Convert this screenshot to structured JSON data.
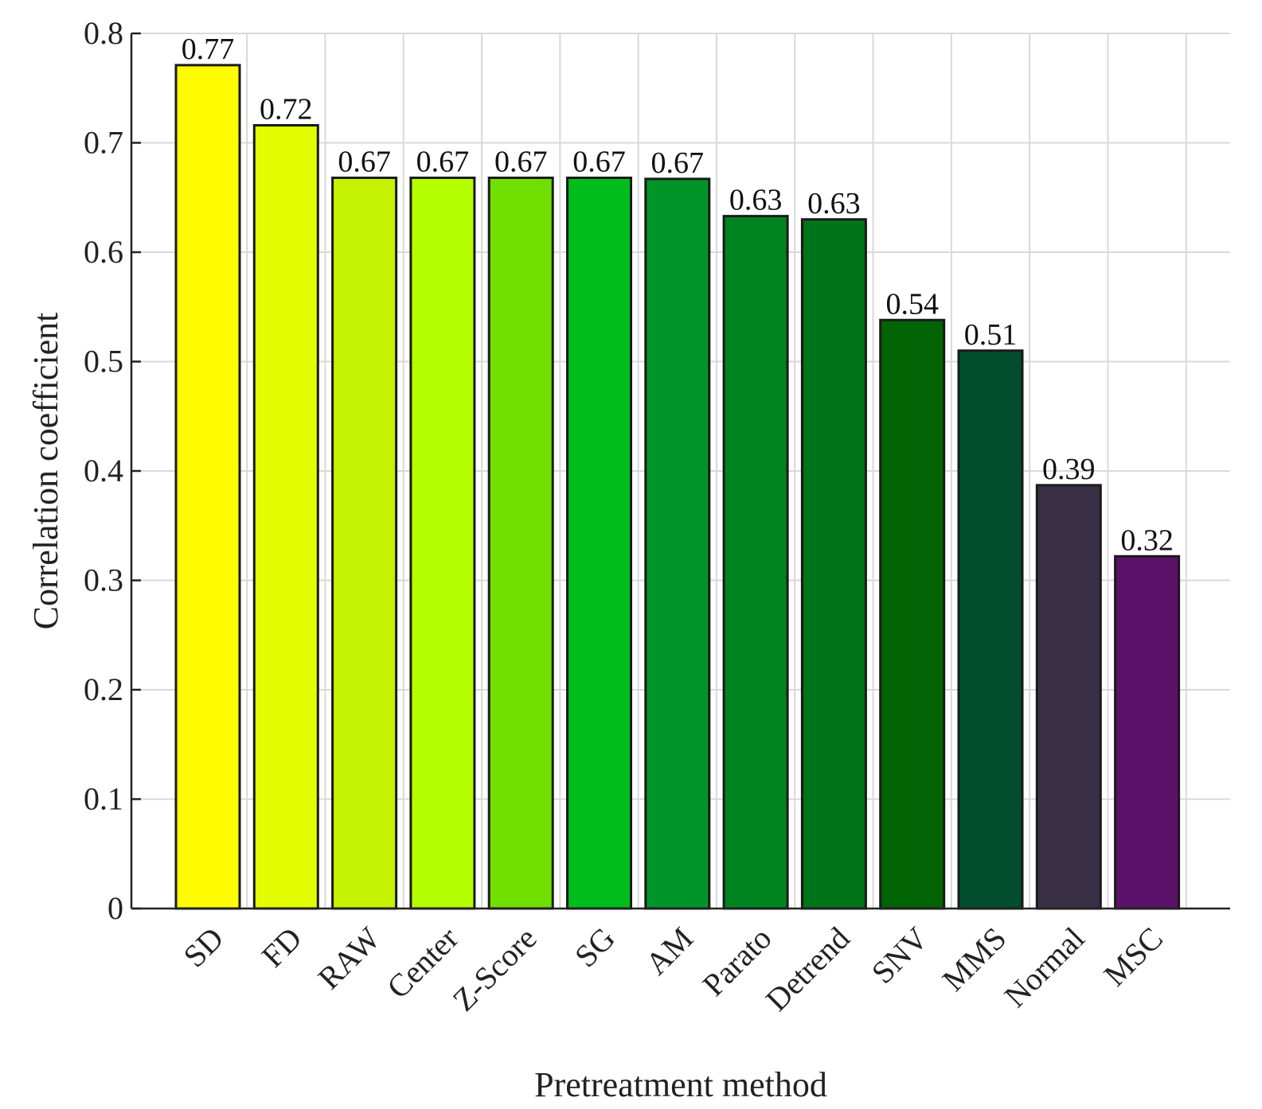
{
  "chart_data": {
    "type": "bar",
    "title": "",
    "xlabel": "Pretreatment method",
    "ylabel": "Correlation coefficient",
    "ylim": [
      0,
      0.8
    ],
    "yticks": [
      0,
      0.1,
      0.2,
      0.3,
      0.4,
      0.5,
      0.6,
      0.7,
      0.8
    ],
    "ytick_labels": [
      "0",
      "0.1",
      "0.2",
      "0.3",
      "0.4",
      "0.5",
      "0.6",
      "0.7",
      "0.8"
    ],
    "grid": true,
    "categories": [
      "SD",
      "FD",
      "RAW",
      "Center",
      "Z-Score",
      "SG",
      "AM",
      "Parato",
      "Detrend",
      "SNV",
      "MMS",
      "Normal",
      "MSC"
    ],
    "values": [
      0.771,
      0.716,
      0.668,
      0.668,
      0.668,
      0.668,
      0.667,
      0.633,
      0.63,
      0.538,
      0.51,
      0.387,
      0.322
    ],
    "data_labels": [
      "0.77",
      "0.72",
      "0.67",
      "0.67",
      "0.67",
      "0.67",
      "0.67",
      "0.63",
      "0.63",
      "0.54",
      "0.51",
      "0.39",
      "0.32"
    ],
    "colors": [
      "#fffc00",
      "#e1fd00",
      "#c5f200",
      "#b4ff00",
      "#71df00",
      "#00bc1c",
      "#009429",
      "#008420",
      "#007419",
      "#006404",
      "#004e2e",
      "#3a3046",
      "#5c1268"
    ]
  }
}
